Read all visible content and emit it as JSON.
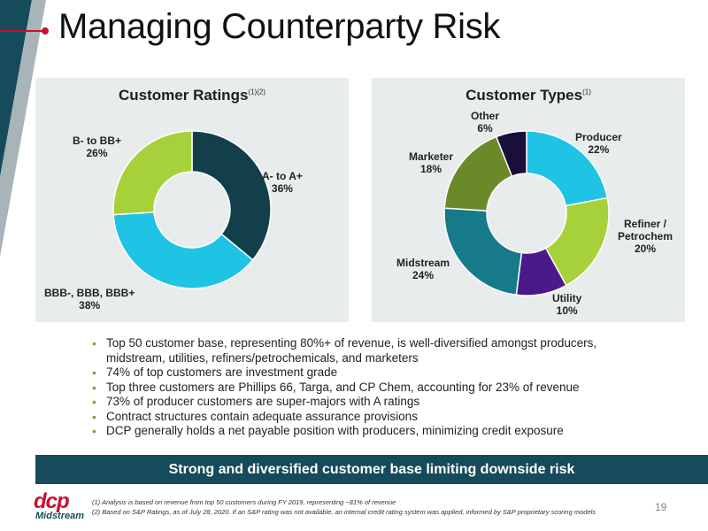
{
  "title": "Managing Counterparty Risk",
  "colors": {
    "teal_dark": "#154b5a",
    "accent_red": "#c8102e",
    "panel_bg": "#e9ecec"
  },
  "left_panel": {
    "title": "Customer Ratings",
    "title_sup": "(1)(2)"
  },
  "right_panel": {
    "title": "Customer Types",
    "title_sup": "(1)"
  },
  "chart_data": [
    {
      "type": "pie",
      "title": "Customer Ratings",
      "categories": [
        "A- to A+",
        "BBB-, BBB, BBB+",
        "B- to BB+"
      ],
      "values": [
        36,
        38,
        26
      ],
      "value_labels": [
        "36%",
        "38%",
        "26%"
      ],
      "colors": [
        "#123f4a",
        "#1fc3e3",
        "#a6d13a"
      ]
    },
    {
      "type": "pie",
      "title": "Customer Types",
      "categories": [
        "Producer",
        "Refiner / Petrochem",
        "Utility",
        "Midstream",
        "Marketer",
        "Other"
      ],
      "values": [
        22,
        20,
        10,
        24,
        18,
        6
      ],
      "value_labels": [
        "22%",
        "20%",
        "10%",
        "24%",
        "18%",
        "6%"
      ],
      "colors": [
        "#1fc3e3",
        "#a6d13a",
        "#4a1a8a",
        "#177a8a",
        "#6a8a2a",
        "#1a0f3a"
      ]
    }
  ],
  "ratings_labels": {
    "a": {
      "name": "A- to A+",
      "pct": "36%"
    },
    "bbb": {
      "name": "BBB-, BBB, BBB+",
      "pct": "38%"
    },
    "bb": {
      "name": "B- to BB+",
      "pct": "26%"
    }
  },
  "types_labels": {
    "producer": {
      "name": "Producer",
      "pct": "22%"
    },
    "refiner_1": "Refiner /",
    "refiner_2": "Petrochem",
    "refiner_pct": "20%",
    "utility": {
      "name": "Utility",
      "pct": "10%"
    },
    "midstream": {
      "name": "Midstream",
      "pct": "24%"
    },
    "marketer": {
      "name": "Marketer",
      "pct": "18%"
    },
    "other": {
      "name": "Other",
      "pct": "6%"
    }
  },
  "bullets": [
    "Top 50 customer base, representing 80%+ of revenue, is well-diversified amongst producers, midstream, utilities, refiners/petrochemicals, and marketers",
    "74% of top customers are investment grade",
    "Top three customers are Phillips 66, Targa, and CP Chem, accounting for 23% of revenue",
    "73% of producer customers are super-majors with A ratings",
    "Contract structures contain adequate assurance provisions",
    "DCP generally holds a net payable position with producers, minimizing credit exposure"
  ],
  "banner": "Strong and diversified customer base limiting downside risk",
  "logo": {
    "top": "dcp",
    "bottom": "Midstream"
  },
  "footnotes": [
    "(1) Analysis is based on revenue from top 50 customers during FY 2019, representing ~81% of revenue",
    "(2) Based on S&P Ratings, as of July 28, 2020. If an S&P rating was not available, an internal credit rating system was applied, informed by S&P proprietary scoring models"
  ],
  "page_number": "19"
}
